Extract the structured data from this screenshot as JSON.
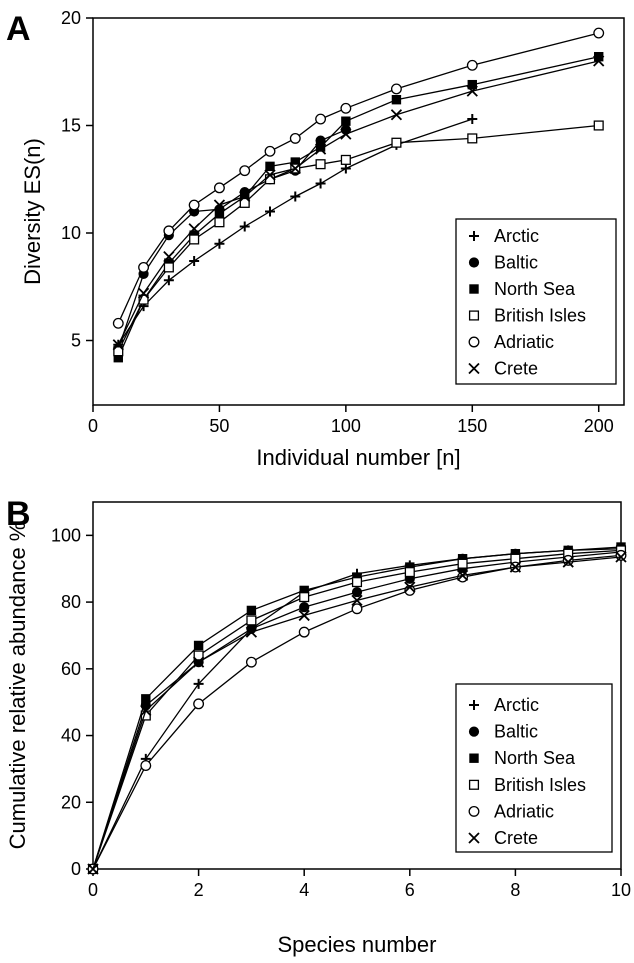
{
  "chart_data": [
    {
      "panel": "A",
      "type": "line",
      "xlabel": "Individual number [n]",
      "ylabel": "Diversity ES(n)",
      "xlim": [
        0,
        210
      ],
      "ylim": [
        2,
        20
      ],
      "xticks": [
        0,
        50,
        100,
        150,
        200
      ],
      "yticks": [
        5,
        10,
        15,
        20
      ],
      "legend_position": "bottom-right",
      "grid": false,
      "series": [
        {
          "name": "Arctic",
          "marker": "plus",
          "x": [
            10,
            20,
            30,
            40,
            50,
            60,
            70,
            80,
            90,
            100,
            120,
            150
          ],
          "y": [
            4.8,
            6.6,
            7.8,
            8.7,
            9.5,
            10.3,
            11.0,
            11.7,
            12.3,
            13.0,
            14.1,
            15.3
          ]
        },
        {
          "name": "Baltic",
          "marker": "filled-circle",
          "x": [
            10,
            20,
            30,
            40,
            50,
            60,
            70,
            80,
            90,
            100
          ],
          "y": [
            4.6,
            8.1,
            9.9,
            11.0,
            11.1,
            11.9,
            12.5,
            12.9,
            14.3,
            14.8
          ]
        },
        {
          "name": "North Sea",
          "marker": "filled-square",
          "x": [
            10,
            20,
            30,
            40,
            50,
            60,
            70,
            80,
            90,
            100,
            120,
            150,
            200
          ],
          "y": [
            4.2,
            6.9,
            8.6,
            9.9,
            10.9,
            11.7,
            13.1,
            13.3,
            14.0,
            15.2,
            16.2,
            16.9,
            18.2
          ]
        },
        {
          "name": "British Isles",
          "marker": "open-square",
          "x": [
            10,
            20,
            30,
            40,
            50,
            60,
            70,
            80,
            90,
            100,
            120,
            150,
            200
          ],
          "y": [
            4.5,
            6.9,
            8.4,
            9.7,
            10.5,
            11.4,
            12.5,
            13.0,
            13.2,
            13.4,
            14.2,
            14.4,
            15.0
          ]
        },
        {
          "name": "Adriatic",
          "marker": "open-circle",
          "x": [
            10,
            20,
            30,
            40,
            50,
            60,
            70,
            80,
            90,
            100,
            120,
            150,
            200
          ],
          "y": [
            5.8,
            8.4,
            10.1,
            11.3,
            12.1,
            12.9,
            13.8,
            14.4,
            15.3,
            15.8,
            16.7,
            17.8,
            19.3
          ]
        },
        {
          "name": "Crete",
          "marker": "cross",
          "x": [
            10,
            20,
            30,
            40,
            50,
            60,
            70,
            80,
            90,
            100,
            120,
            150,
            200
          ],
          "y": [
            4.8,
            7.2,
            8.9,
            10.2,
            11.3,
            11.7,
            12.7,
            13.0,
            13.9,
            14.6,
            15.5,
            16.6,
            18.0
          ]
        }
      ]
    },
    {
      "panel": "B",
      "type": "line",
      "xlabel": "Species number",
      "ylabel": "Cumulative relative abundance %",
      "xlim": [
        0,
        10
      ],
      "ylim": [
        0,
        110
      ],
      "xticks": [
        0,
        2,
        4,
        6,
        8,
        10
      ],
      "yticks": [
        0,
        20,
        40,
        60,
        80,
        100
      ],
      "legend_position": "bottom-right",
      "grid": false,
      "series": [
        {
          "name": "Arctic",
          "marker": "plus",
          "x": [
            0,
            1,
            2,
            3,
            4,
            5,
            6,
            7,
            8,
            9,
            10
          ],
          "y": [
            0,
            33,
            55.5,
            72,
            83,
            88.5,
            91,
            93,
            94.5,
            95.5,
            96
          ]
        },
        {
          "name": "Baltic",
          "marker": "filled-circle",
          "x": [
            0,
            1,
            2,
            3,
            4,
            5,
            6,
            7,
            8,
            9,
            10
          ],
          "y": [
            0,
            49,
            62,
            72,
            78.5,
            83,
            87,
            90,
            92,
            93.5,
            95
          ]
        },
        {
          "name": "North Sea",
          "marker": "filled-square",
          "x": [
            0,
            1,
            2,
            3,
            4,
            5,
            6,
            7,
            8,
            9,
            10
          ],
          "y": [
            0,
            51,
            67,
            77.5,
            83.5,
            87.5,
            90.5,
            93,
            94.5,
            95.5,
            96.5
          ]
        },
        {
          "name": "British Isles",
          "marker": "open-square",
          "x": [
            0,
            1,
            2,
            3,
            4,
            5,
            6,
            7,
            8,
            9,
            10
          ],
          "y": [
            0,
            46,
            64,
            74.5,
            81.5,
            86,
            89,
            91.5,
            93,
            94.5,
            95.5
          ]
        },
        {
          "name": "Adriatic",
          "marker": "open-circle",
          "x": [
            0,
            1,
            2,
            3,
            4,
            5,
            6,
            7,
            8,
            9,
            10
          ],
          "y": [
            0,
            31,
            49.5,
            62,
            71,
            78,
            83.5,
            87.5,
            90.5,
            92.5,
            94
          ]
        },
        {
          "name": "Crete",
          "marker": "cross",
          "x": [
            0,
            1,
            2,
            3,
            4,
            5,
            6,
            7,
            8,
            9,
            10
          ],
          "y": [
            0,
            47.5,
            62,
            71,
            76,
            80.5,
            84.5,
            88,
            90.5,
            92,
            93.5
          ]
        }
      ]
    }
  ]
}
